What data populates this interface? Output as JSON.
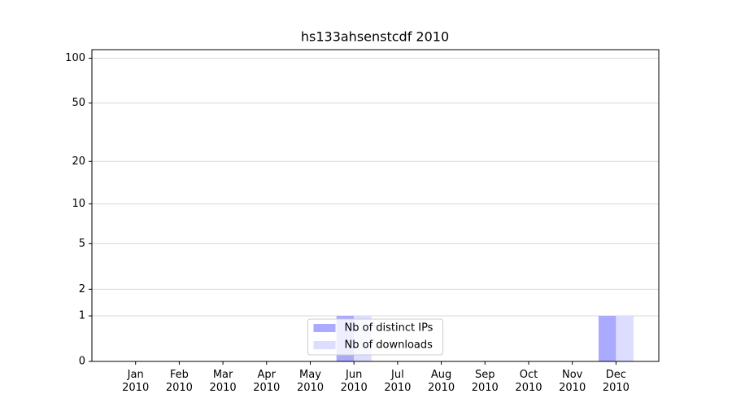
{
  "chart_data": {
    "type": "bar",
    "title": "hs133ahsenstcdf 2010",
    "categories": [
      "Jan\n2010",
      "Feb\n2010",
      "Mar\n2010",
      "Apr\n2010",
      "May\n2010",
      "Jun\n2010",
      "Jul\n2010",
      "Aug\n2010",
      "Sep\n2010",
      "Oct\n2010",
      "Nov\n2010",
      "Dec\n2010"
    ],
    "series": [
      {
        "name": "Nb of distinct IPs",
        "color": "#aaaaff",
        "values": [
          0,
          0,
          0,
          0,
          0,
          1,
          0,
          0,
          0,
          0,
          0,
          1
        ]
      },
      {
        "name": "Nb of downloads",
        "color": "#ddddff",
        "values": [
          0,
          0,
          0,
          0,
          0,
          1,
          0,
          0,
          0,
          0,
          0,
          1
        ]
      }
    ],
    "yscale": "log1p",
    "ylim": [
      0,
      114
    ],
    "yticks": [
      0,
      1,
      2,
      5,
      10,
      20,
      50,
      100
    ],
    "grid": true,
    "legend": "lower center"
  }
}
